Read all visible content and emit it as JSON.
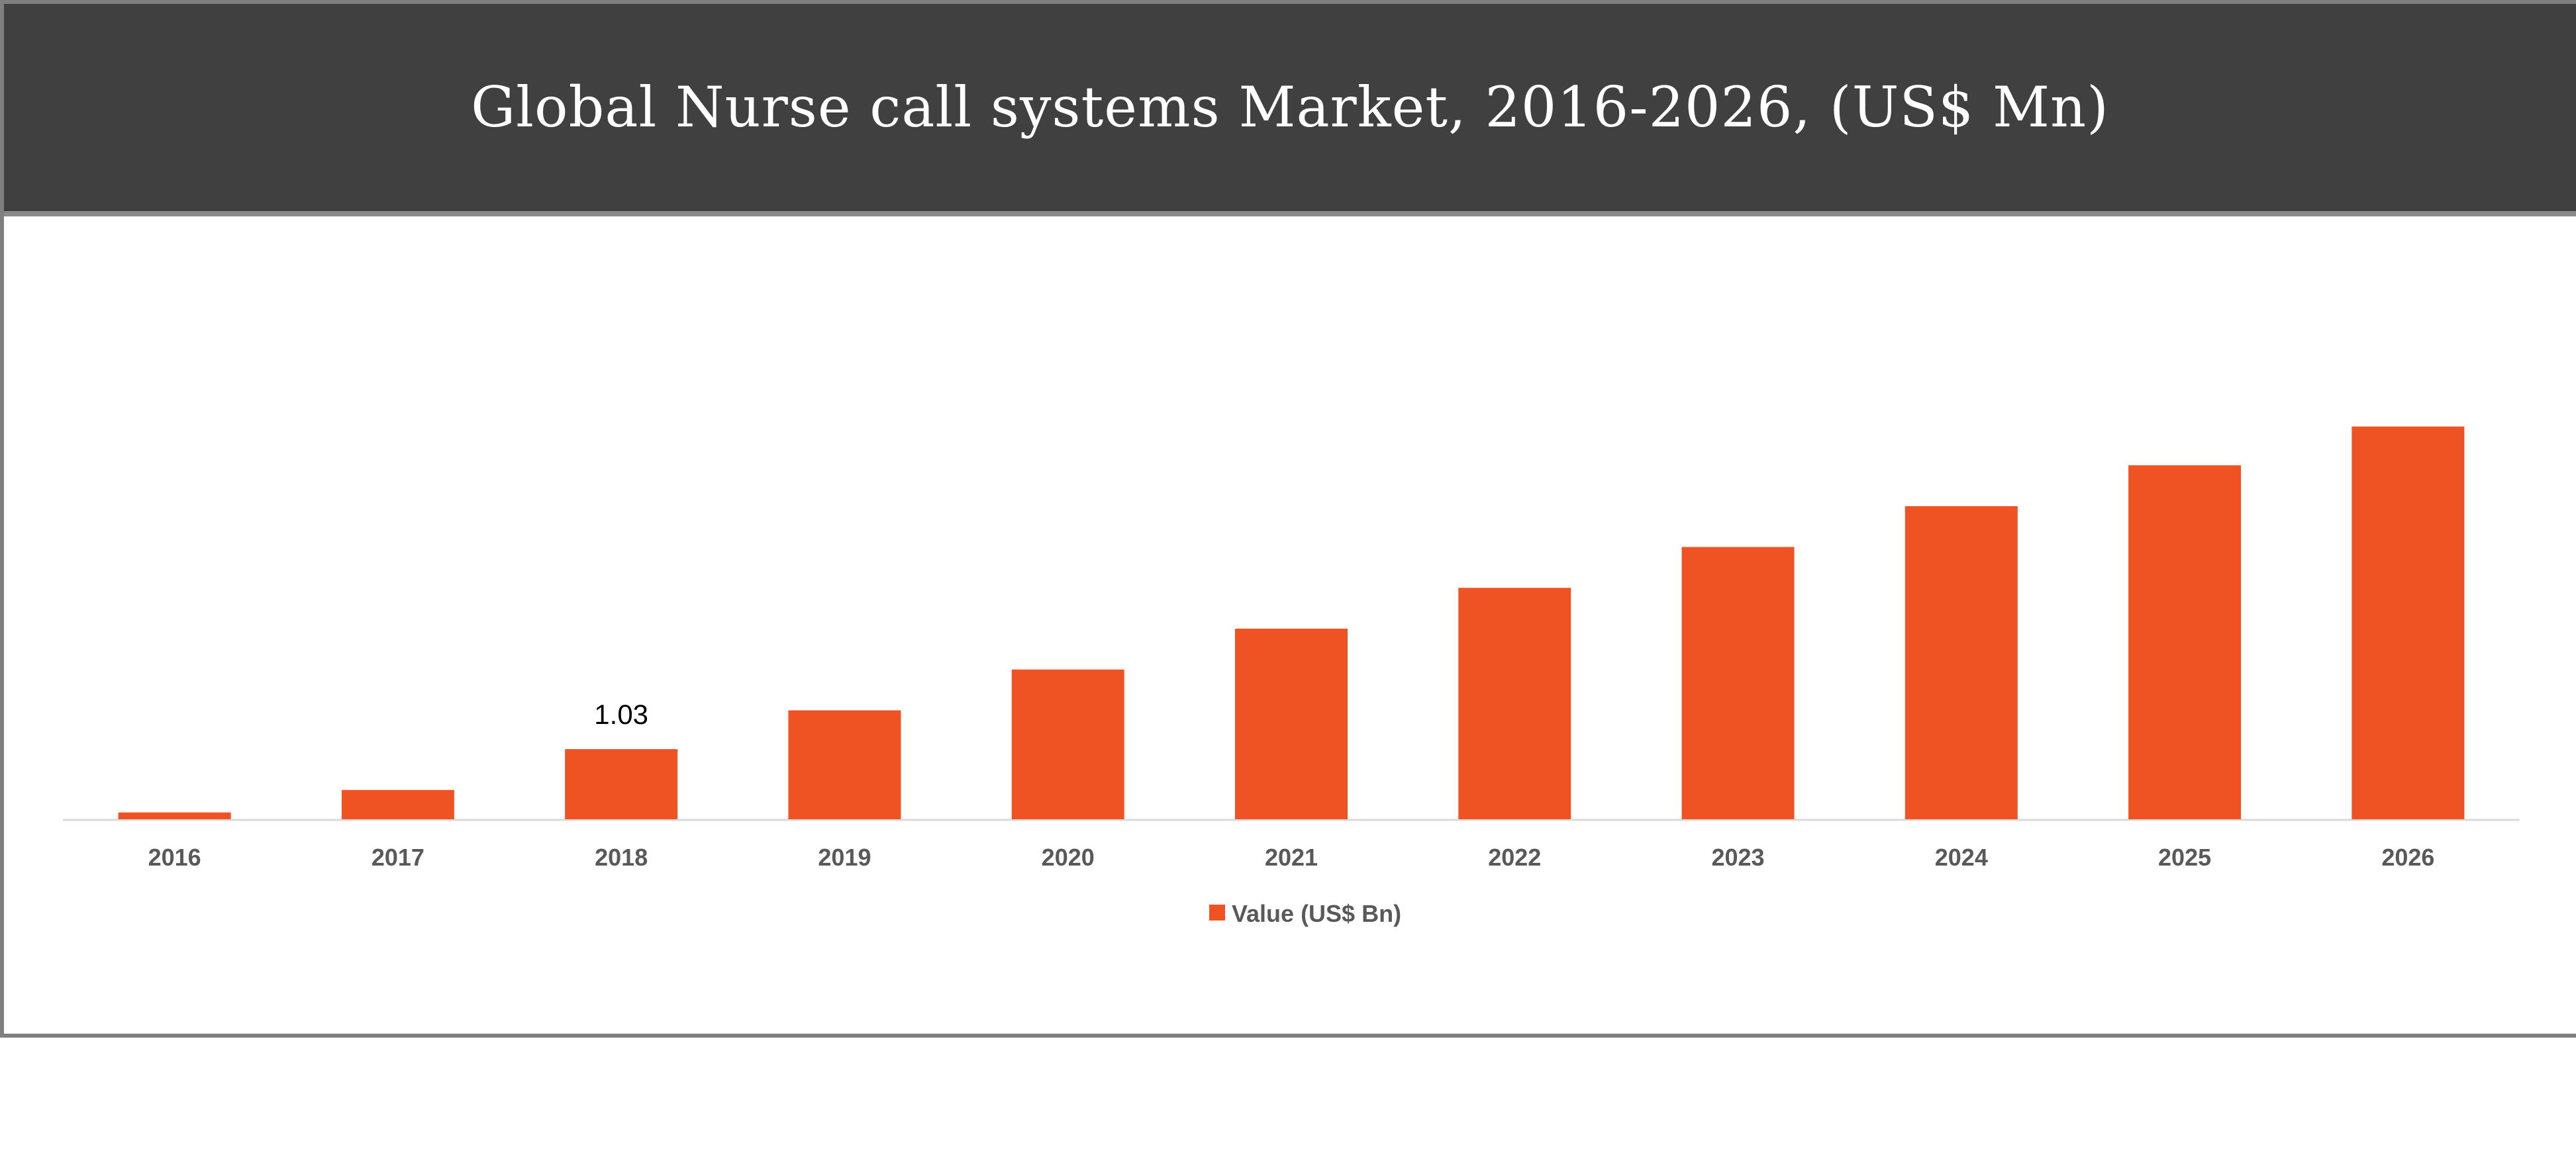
{
  "chart_data": {
    "type": "bar",
    "title": "Global Nurse call systems Market, 2016-2026, (US$ Mn)",
    "categories": [
      "2016",
      "2017",
      "2018",
      "2019",
      "2020",
      "2021",
      "2022",
      "2023",
      "2024",
      "2025",
      "2026"
    ],
    "series": [
      {
        "name": "Value (US$ Bn)",
        "color": "#f05323",
        "values": [
          0.1,
          0.43,
          1.03,
          1.6,
          2.2,
          2.8,
          3.4,
          4.0,
          4.6,
          5.2,
          5.77
        ]
      }
    ],
    "data_labels": [
      {
        "category": "2018",
        "text": "1.03"
      }
    ],
    "xlabel": "",
    "ylabel": "",
    "ylim": [
      0,
      7
    ],
    "grid": false,
    "legend_position": "bottom"
  }
}
